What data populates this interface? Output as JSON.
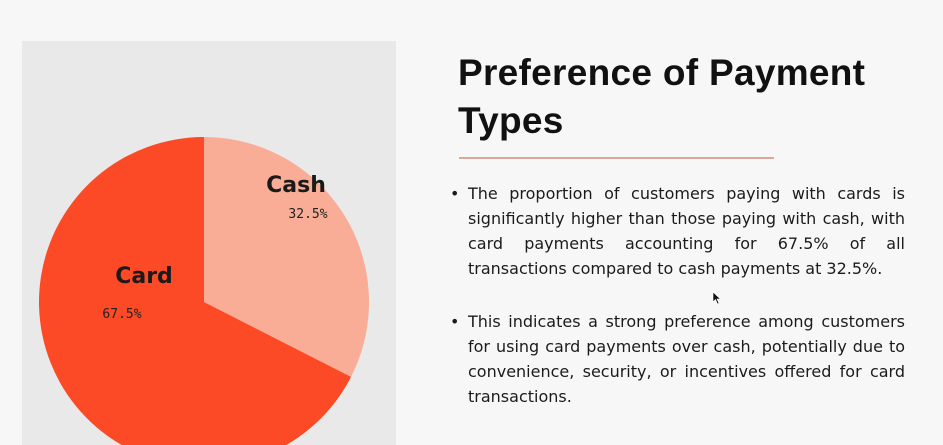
{
  "slide": {
    "title": "Preference of Payment Types",
    "bullets": [
      "The proportion of customers paying with cards is significantly higher than those paying with cash, with card payments accounting for 67.5% of all transactions compared to cash payments at 32.5%.",
      "This indicates a strong preference among customers for using card payments over cash, potentially due to convenience, security, or incentives offered for card transactions."
    ]
  },
  "chart_data": {
    "type": "pie",
    "title": "",
    "start": "top",
    "direction": "clockwise",
    "slices": [
      {
        "label": "Cash",
        "value": 32.5,
        "value_label": "32.5%",
        "color": "#f9ad97"
      },
      {
        "label": "Card",
        "value": 67.5,
        "value_label": "67.5%",
        "color": "#fb4a25"
      }
    ]
  }
}
